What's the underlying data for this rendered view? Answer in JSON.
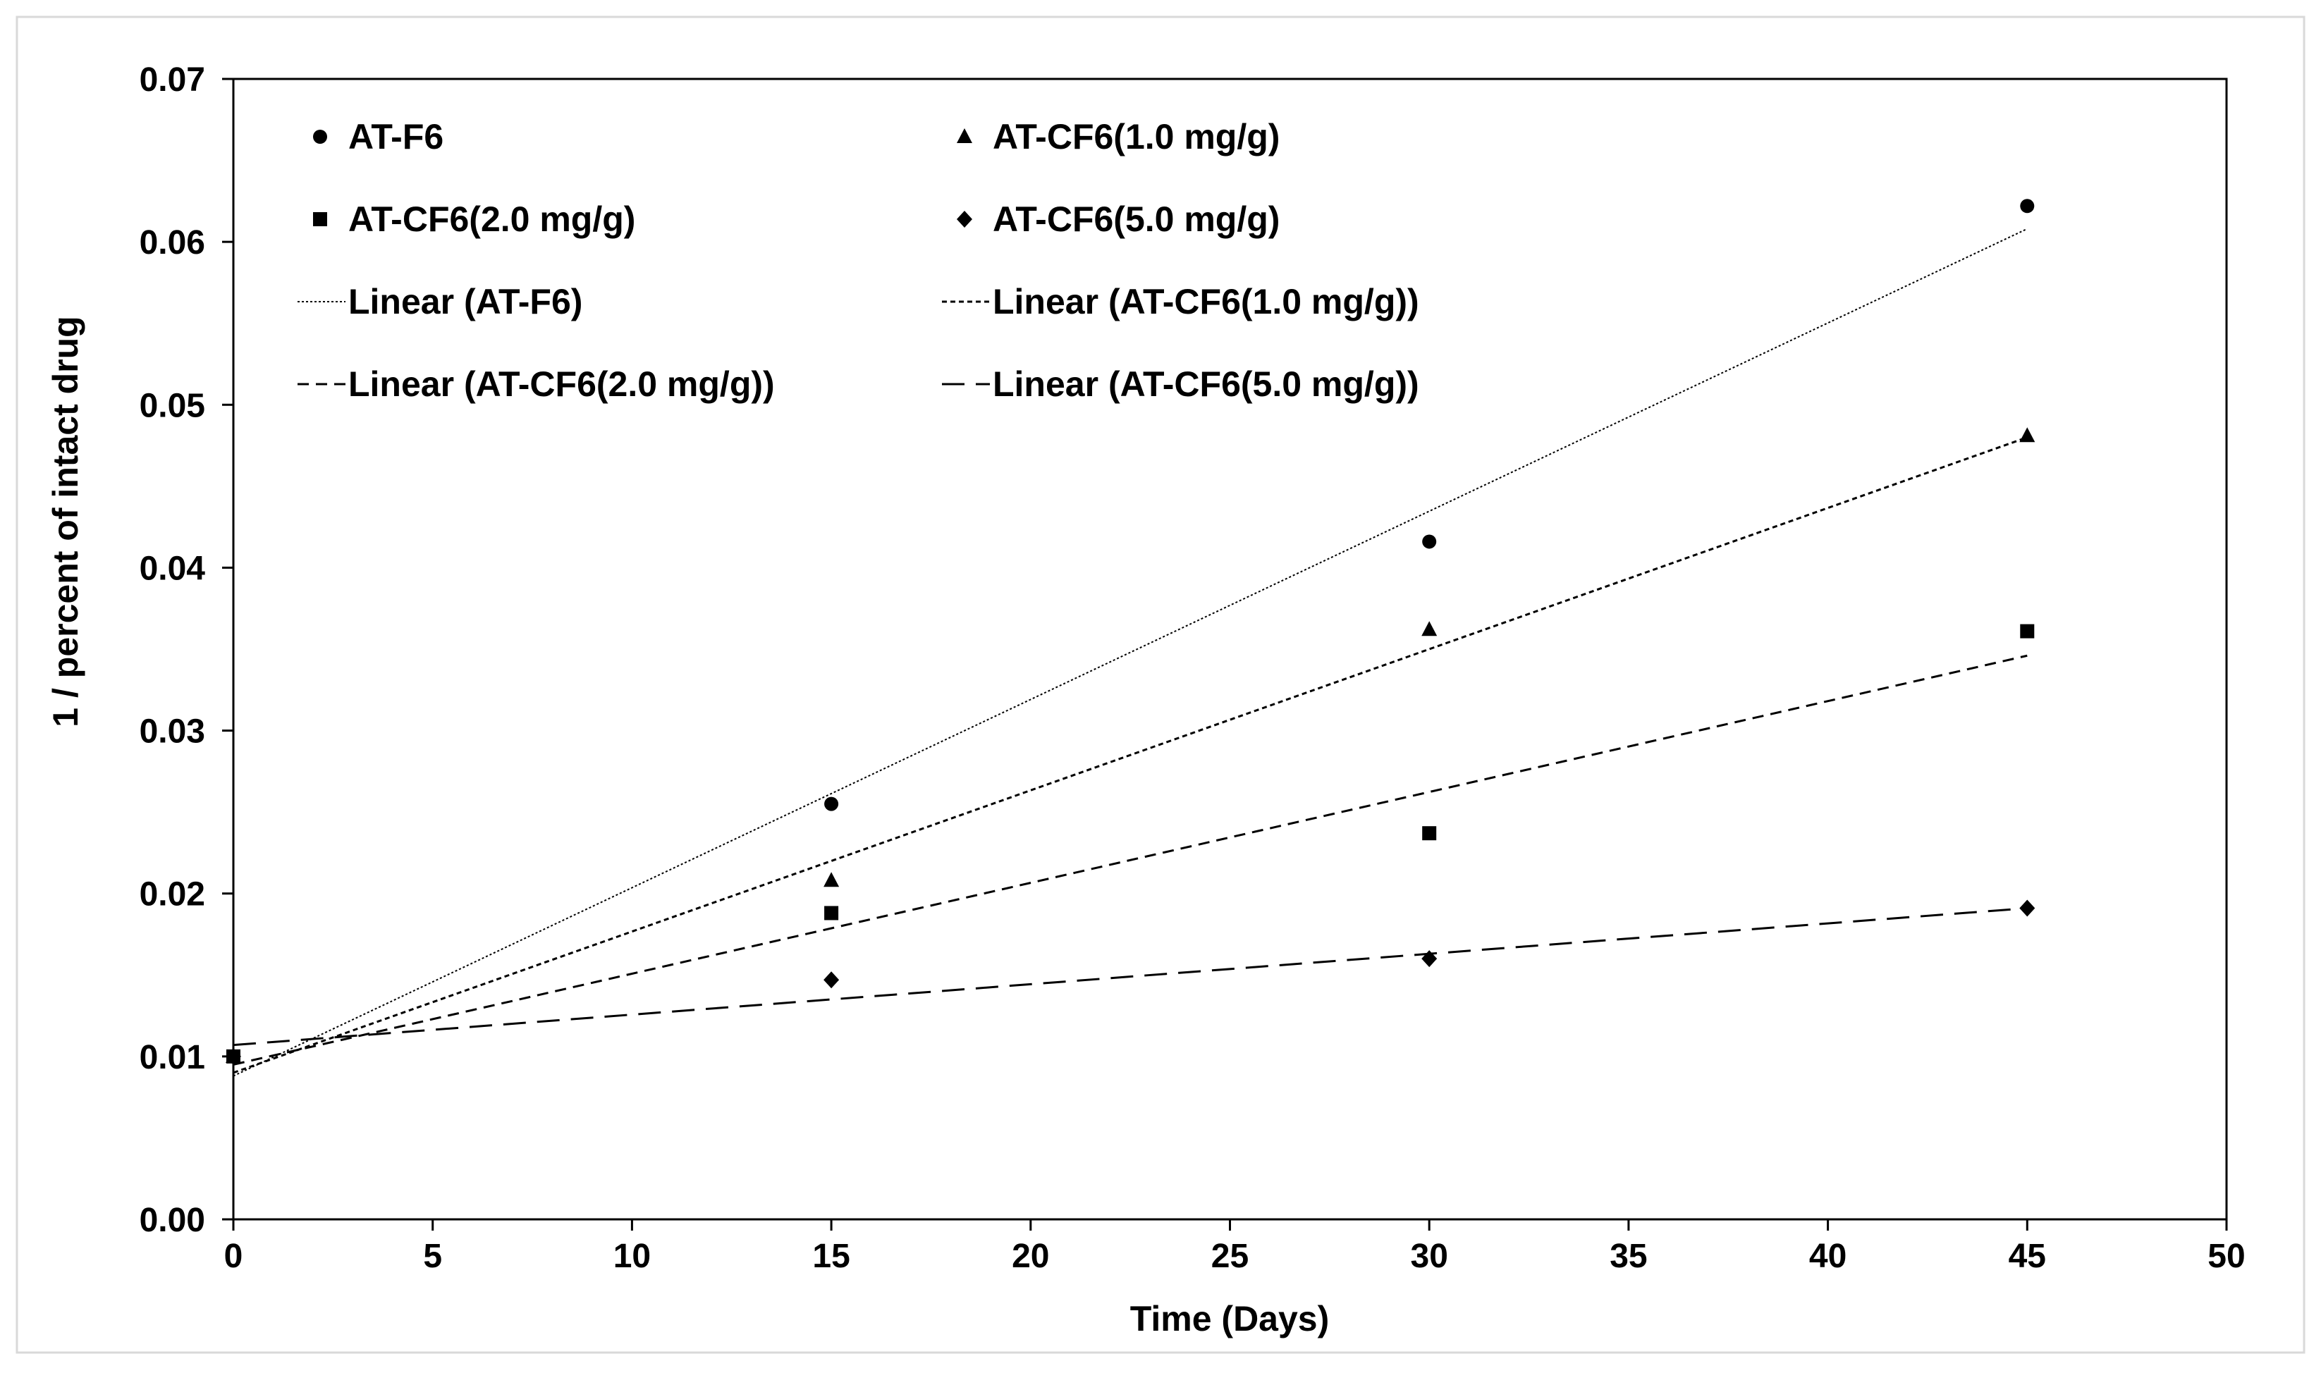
{
  "chart_data": {
    "type": "scatter",
    "title": "",
    "xlabel": "Time (Days)",
    "ylabel": "1 / percent of intact drug",
    "xlim": [
      0,
      50
    ],
    "ylim": [
      0,
      0.07
    ],
    "x_ticks": [
      "0",
      "5",
      "10",
      "15",
      "20",
      "25",
      "30",
      "35",
      "40",
      "45",
      "50"
    ],
    "y_ticks": [
      "0.00",
      "0.01",
      "0.02",
      "0.03",
      "0.04",
      "0.05",
      "0.06",
      "0.07"
    ],
    "grid": false,
    "legend_position": "top",
    "x": [
      0,
      15,
      30,
      45
    ],
    "series": [
      {
        "name": "AT-F6",
        "marker": "circle",
        "values": [
          0.01,
          0.0255,
          0.0416,
          0.0622
        ],
        "trendline": {
          "name": "Linear (AT-F6)",
          "dash": "dotted",
          "start": 0.0088,
          "end": 0.0608
        }
      },
      {
        "name": "AT-CF6(1.0 mg/g)",
        "marker": "triangle",
        "values": [
          0.01,
          0.0208,
          0.0362,
          0.0481
        ],
        "trendline": {
          "name": "Linear (AT-CF6(1.0 mg/g))",
          "dash": "short-dash",
          "start": 0.009,
          "end": 0.048
        }
      },
      {
        "name": "AT-CF6(2.0 mg/g)",
        "marker": "square",
        "values": [
          0.01,
          0.0188,
          0.0237,
          0.0361
        ],
        "trendline": {
          "name": "Linear (AT-CF6(2.0 mg/g))",
          "dash": "dash",
          "start": 0.0095,
          "end": 0.0346
        }
      },
      {
        "name": "AT-CF6(5.0 mg/g)",
        "marker": "diamond",
        "values": [
          0.01,
          0.0147,
          0.016,
          0.0191
        ],
        "trendline": {
          "name": "Linear (AT-CF6(5.0 mg/g))",
          "dash": "long-dash",
          "start": 0.0107,
          "end": 0.0191
        }
      }
    ]
  }
}
